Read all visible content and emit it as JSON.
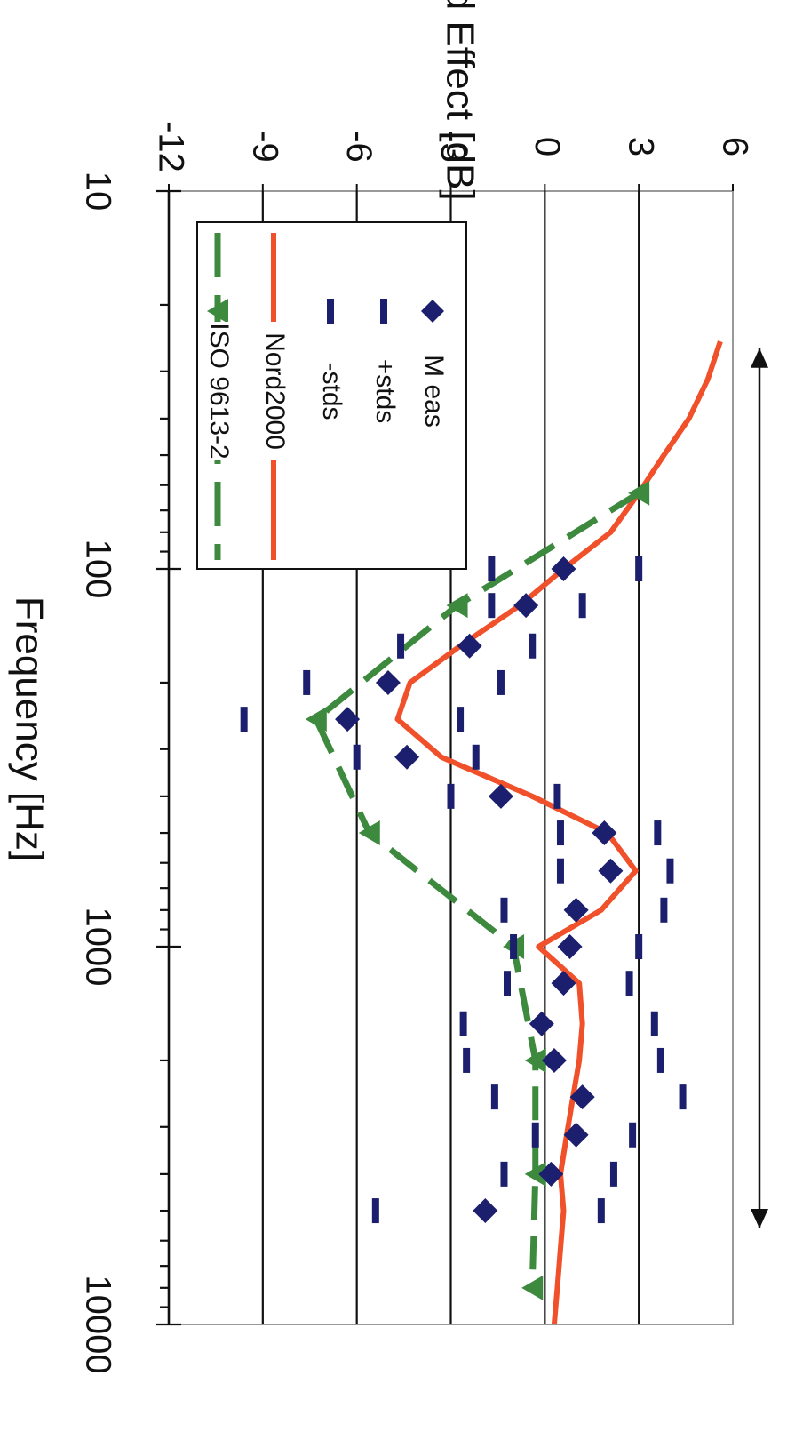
{
  "chart_data": {
    "type": "line",
    "orientation": "rotated-90-clockwise",
    "ylabel": "Ground Effect  [dB]",
    "xlabel": "Frequency   [Hz]",
    "x_scale": "log",
    "xlim": [
      10,
      10000
    ],
    "ylim": [
      -12,
      6
    ],
    "x_tick_labels": [
      "10",
      "100",
      "1000",
      "10000"
    ],
    "y_tick_labels": [
      "-12",
      "-9",
      "-6",
      "-3",
      "0",
      "3",
      "6"
    ],
    "x_major_ticks": [
      10,
      100,
      1000,
      10000
    ],
    "y_ticks": [
      -12,
      -9,
      -6,
      -3,
      0,
      3,
      6
    ],
    "grid": "horizontal-major",
    "legend": "inside top-left",
    "series": [
      {
        "name": "M eas",
        "marker": "diamond",
        "color": "#1b1f6e",
        "points": [
          [
            100,
            0.6
          ],
          [
            125,
            -0.6
          ],
          [
            160,
            -2.4
          ],
          [
            200,
            -5.0
          ],
          [
            250,
            -6.3
          ],
          [
            315,
            -4.4
          ],
          [
            400,
            -1.4
          ],
          [
            500,
            1.9
          ],
          [
            630,
            2.1
          ],
          [
            800,
            1.0
          ],
          [
            1000,
            0.8
          ],
          [
            1250,
            0.6
          ],
          [
            1600,
            -0.1
          ],
          [
            2000,
            0.3
          ],
          [
            2500,
            1.2
          ],
          [
            3150,
            1.0
          ],
          [
            4000,
            0.2
          ],
          [
            5000,
            -1.9
          ]
        ]
      },
      {
        "name": "+stds",
        "marker": "dash",
        "color": "#1b1f6e",
        "points": [
          [
            100,
            3.0
          ],
          [
            125,
            1.2
          ],
          [
            160,
            -0.4
          ],
          [
            200,
            -1.4
          ],
          [
            250,
            -2.7
          ],
          [
            315,
            -2.2
          ],
          [
            400,
            0.4
          ],
          [
            500,
            3.6
          ],
          [
            630,
            4.0
          ],
          [
            800,
            3.8
          ],
          [
            1000,
            3.0
          ],
          [
            1250,
            2.7
          ],
          [
            1600,
            3.5
          ],
          [
            2000,
            3.7
          ],
          [
            2500,
            4.4
          ],
          [
            3150,
            2.8
          ],
          [
            4000,
            2.2
          ],
          [
            5000,
            1.8
          ]
        ]
      },
      {
        "name": "-stds",
        "marker": "dash",
        "color": "#1b1f6e",
        "points": [
          [
            100,
            -1.7
          ],
          [
            125,
            -1.7
          ],
          [
            160,
            -4.6
          ],
          [
            200,
            -7.6
          ],
          [
            250,
            -9.6
          ],
          [
            315,
            -6.0
          ],
          [
            400,
            -3.0
          ],
          [
            500,
            0.5
          ],
          [
            630,
            0.5
          ],
          [
            800,
            -1.3
          ],
          [
            1000,
            -1.0
          ],
          [
            1250,
            -1.2
          ],
          [
            1600,
            -2.6
          ],
          [
            2000,
            -2.5
          ],
          [
            2500,
            -1.6
          ],
          [
            3150,
            -0.3
          ],
          [
            4000,
            -1.3
          ],
          [
            5000,
            -5.4
          ]
        ]
      },
      {
        "name": "Nord2000",
        "marker": "none",
        "color": "#f0502a",
        "points": [
          [
            25,
            5.6
          ],
          [
            31.5,
            5.2
          ],
          [
            40,
            4.6
          ],
          [
            50,
            3.8
          ],
          [
            63,
            3.0
          ],
          [
            80,
            2.1
          ],
          [
            100,
            0.6
          ],
          [
            125,
            -0.8
          ],
          [
            160,
            -2.7
          ],
          [
            200,
            -4.3
          ],
          [
            250,
            -4.7
          ],
          [
            315,
            -3.3
          ],
          [
            400,
            -0.4
          ],
          [
            500,
            2.0
          ],
          [
            630,
            2.9
          ],
          [
            800,
            1.8
          ],
          [
            1000,
            -0.2
          ],
          [
            1250,
            1.1
          ],
          [
            1600,
            1.2
          ],
          [
            2000,
            1.1
          ],
          [
            2500,
            0.9
          ],
          [
            3150,
            0.7
          ],
          [
            4000,
            0.5
          ],
          [
            5000,
            0.6
          ],
          [
            6300,
            0.5
          ],
          [
            8000,
            0.4
          ],
          [
            10000,
            0.3
          ]
        ]
      },
      {
        "name": "ISO 9613-2",
        "marker": "triangle",
        "color": "#3d8a3f",
        "points": [
          [
            63,
            3.0
          ],
          [
            125,
            -2.8
          ],
          [
            250,
            -7.3
          ],
          [
            500,
            -5.6
          ],
          [
            1000,
            -1.0
          ],
          [
            2000,
            -0.3
          ],
          [
            4000,
            -0.3
          ],
          [
            8000,
            -0.4
          ]
        ]
      }
    ],
    "span_arrow": "double-headed, 31.5 Hz to 5000 Hz"
  }
}
